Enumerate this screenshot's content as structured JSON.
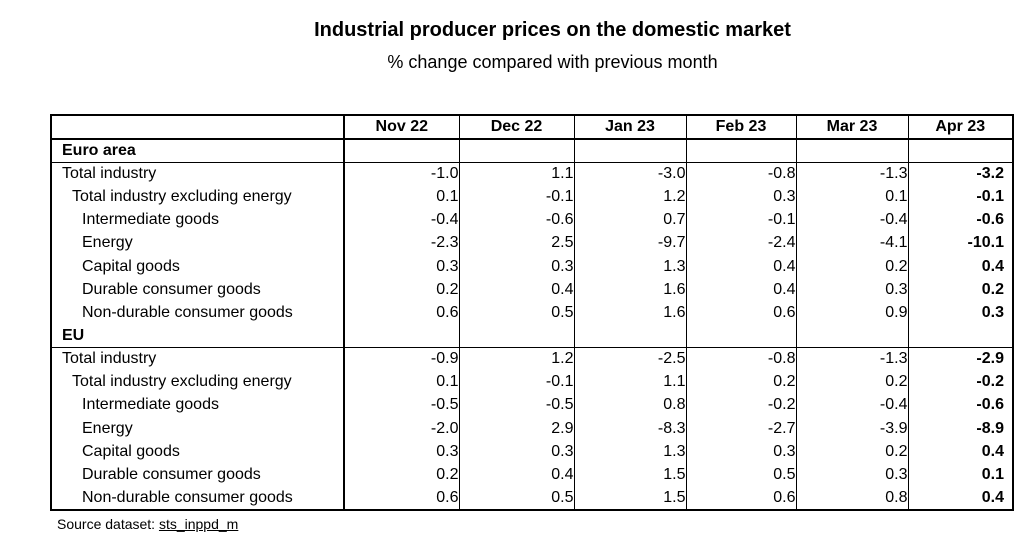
{
  "title": "Industrial producer prices on the domestic market",
  "subtitle": "% change compared with previous month",
  "columns": [
    "Nov 22",
    "Dec 22",
    "Jan 23",
    "Feb 23",
    "Mar 23",
    "Apr 23"
  ],
  "groups": [
    {
      "name": "Euro area",
      "rows": [
        {
          "label": "Total industry",
          "values": [
            "-1.0",
            "1.1",
            "-3.0",
            "-0.8",
            "-1.3",
            "-3.2"
          ]
        },
        {
          "label": "Total industry excluding energy",
          "values": [
            "0.1",
            "-0.1",
            "1.2",
            "0.3",
            "0.1",
            "-0.1"
          ]
        },
        {
          "label": "Intermediate goods",
          "values": [
            "-0.4",
            "-0.6",
            "0.7",
            "-0.1",
            "-0.4",
            "-0.6"
          ]
        },
        {
          "label": "Energy",
          "values": [
            "-2.3",
            "2.5",
            "-9.7",
            "-2.4",
            "-4.1",
            "-10.1"
          ]
        },
        {
          "label": "Capital goods",
          "values": [
            "0.3",
            "0.3",
            "1.3",
            "0.4",
            "0.2",
            "0.4"
          ]
        },
        {
          "label": "Durable consumer goods",
          "values": [
            "0.2",
            "0.4",
            "1.6",
            "0.4",
            "0.3",
            "0.2"
          ]
        },
        {
          "label": "Non-durable consumer goods",
          "values": [
            "0.6",
            "0.5",
            "1.6",
            "0.6",
            "0.9",
            "0.3"
          ]
        }
      ]
    },
    {
      "name": "EU",
      "rows": [
        {
          "label": "Total industry",
          "values": [
            "-0.9",
            "1.2",
            "-2.5",
            "-0.8",
            "-1.3",
            "-2.9"
          ]
        },
        {
          "label": "Total industry excluding energy",
          "values": [
            "0.1",
            "-0.1",
            "1.1",
            "0.2",
            "0.2",
            "-0.2"
          ]
        },
        {
          "label": "Intermediate goods",
          "values": [
            "-0.5",
            "-0.5",
            "0.8",
            "-0.2",
            "-0.4",
            "-0.6"
          ]
        },
        {
          "label": "Energy",
          "values": [
            "-2.0",
            "2.9",
            "-8.3",
            "-2.7",
            "-3.9",
            "-8.9"
          ]
        },
        {
          "label": "Capital goods",
          "values": [
            "0.3",
            "0.3",
            "1.3",
            "0.3",
            "0.2",
            "0.4"
          ]
        },
        {
          "label": "Durable consumer goods",
          "values": [
            "0.2",
            "0.4",
            "1.5",
            "0.5",
            "0.3",
            "0.1"
          ]
        },
        {
          "label": "Non-durable consumer goods",
          "values": [
            "0.6",
            "0.5",
            "1.5",
            "0.6",
            "0.8",
            "0.4"
          ]
        }
      ]
    }
  ],
  "source": {
    "prefix": "Source dataset: ",
    "dataset": "sts_inppd_m"
  }
}
